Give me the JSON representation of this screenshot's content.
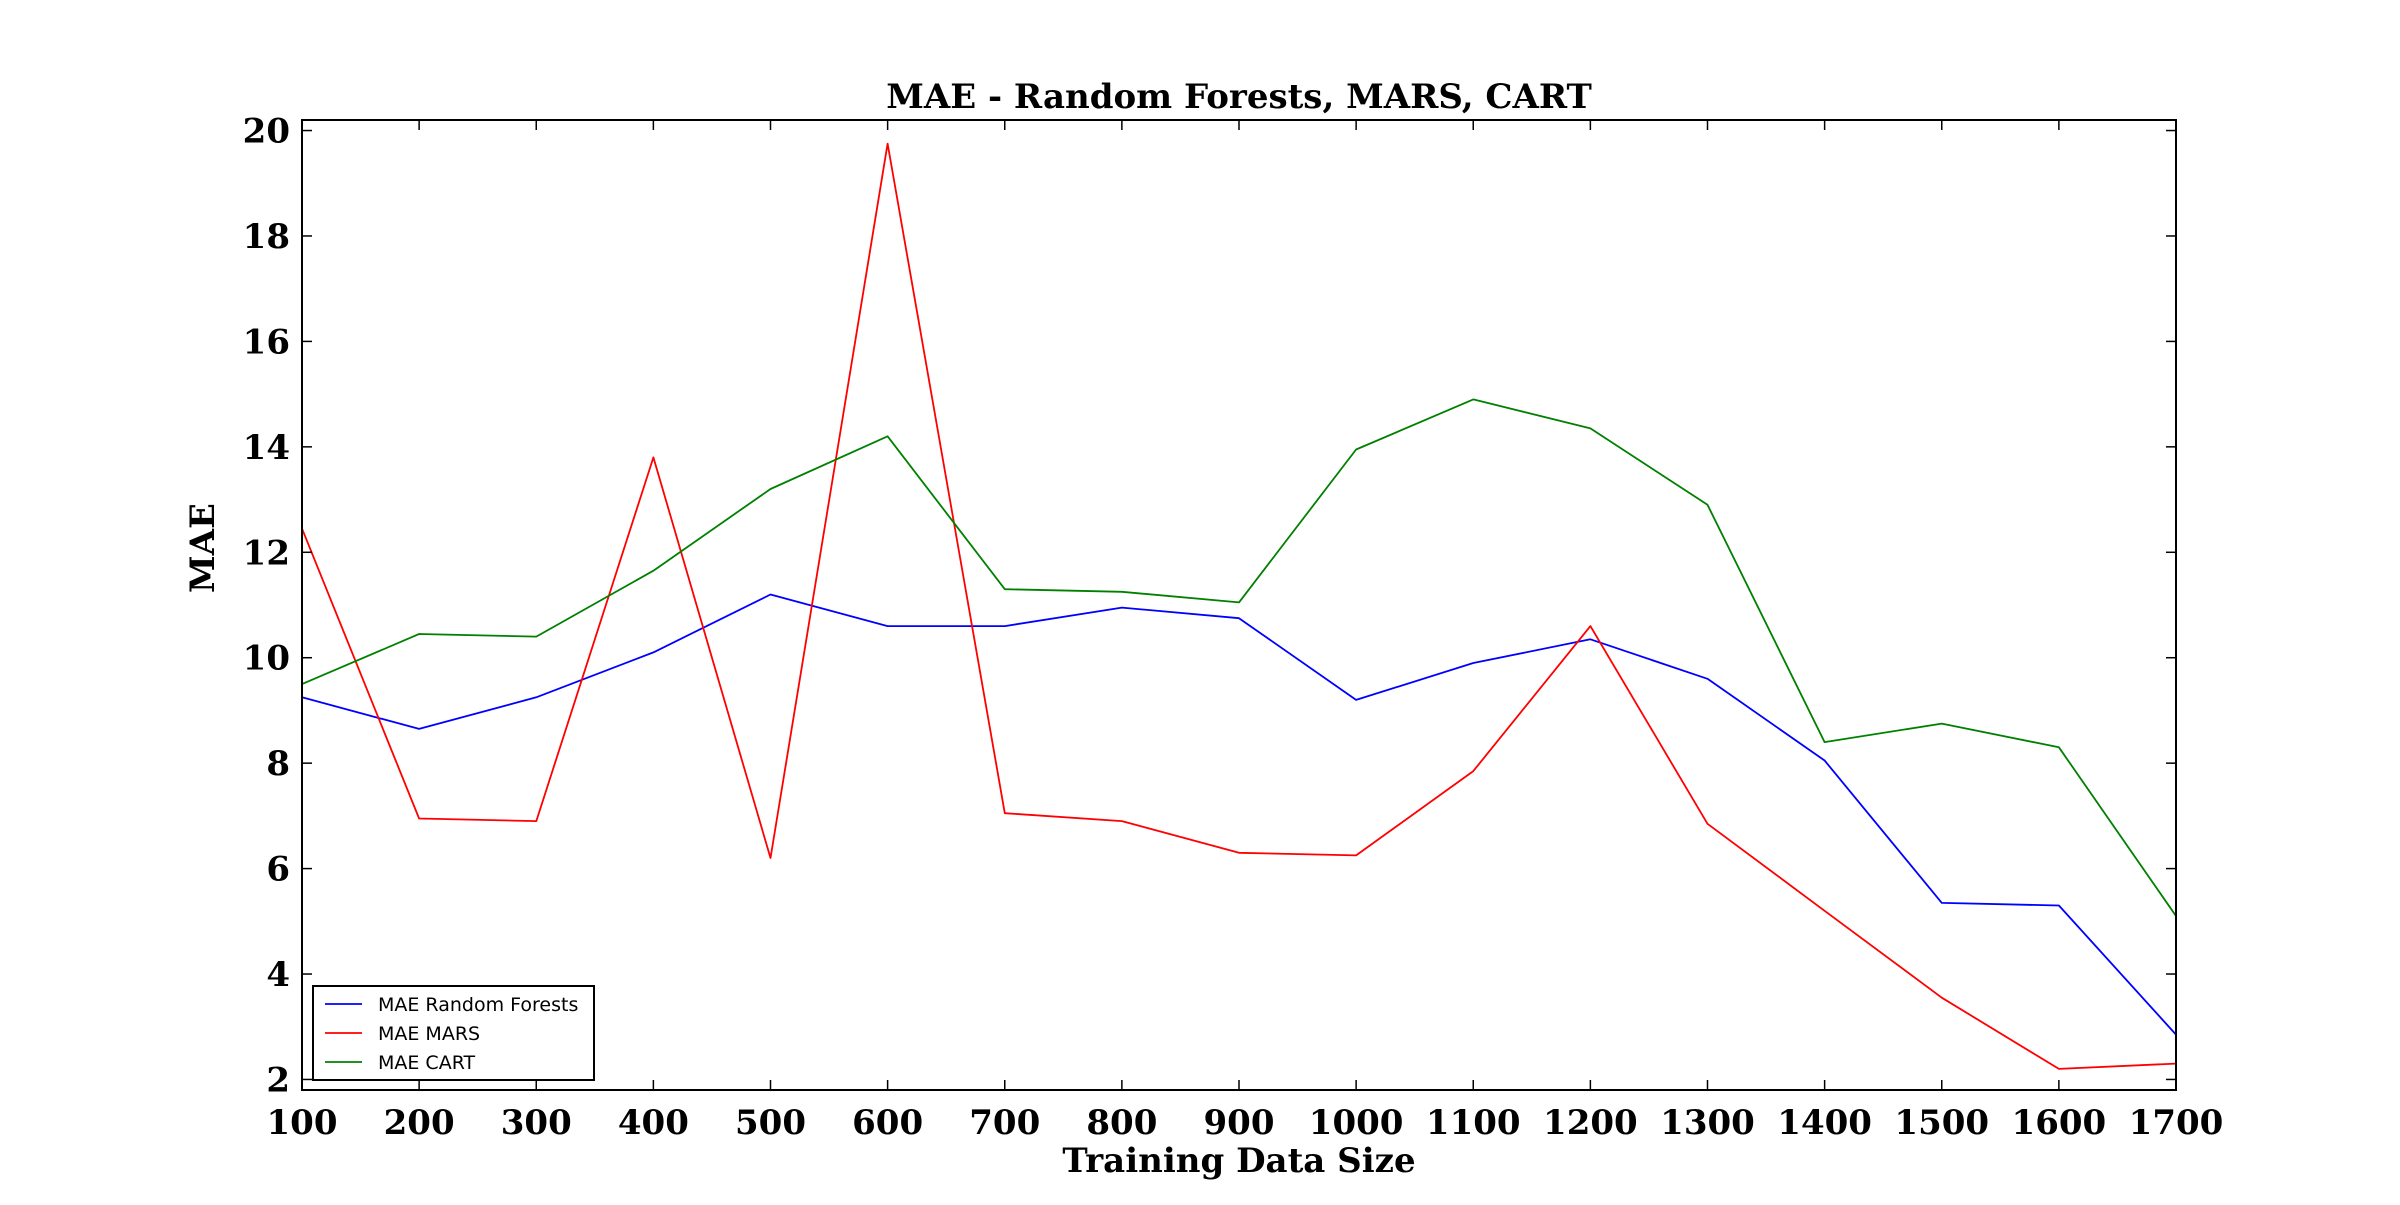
{
  "chart_data": {
    "type": "line",
    "title": "MAE - Random Forests, MARS, CART",
    "xlabel": "Training Data Size",
    "ylabel": "MAE",
    "x": [
      100,
      200,
      300,
      400,
      500,
      600,
      700,
      800,
      900,
      1000,
      1100,
      1200,
      1300,
      1400,
      1500,
      1600,
      1700
    ],
    "xlim": [
      100,
      1700
    ],
    "ylim": [
      1.8,
      20.2
    ],
    "xticks": [
      100,
      200,
      300,
      400,
      500,
      600,
      700,
      800,
      900,
      1000,
      1100,
      1200,
      1300,
      1400,
      1500,
      1600,
      1700
    ],
    "yticks": [
      2,
      4,
      6,
      8,
      10,
      12,
      14,
      16,
      18,
      20
    ],
    "grid": false,
    "legend_position": "lower-left",
    "series": [
      {
        "name": "MAE Random Forests",
        "color": "#0000ff",
        "values": [
          9.25,
          8.65,
          9.25,
          10.1,
          11.2,
          10.6,
          10.6,
          10.95,
          10.75,
          9.2,
          9.9,
          10.35,
          9.6,
          8.05,
          5.35,
          5.3,
          2.85
        ]
      },
      {
        "name": "MAE MARS",
        "color": "#ff0000",
        "values": [
          12.45,
          6.95,
          6.9,
          13.8,
          6.2,
          19.75,
          7.05,
          6.9,
          6.3,
          6.25,
          7.85,
          10.6,
          6.85,
          5.2,
          3.55,
          2.2,
          2.3
        ]
      },
      {
        "name": "MAE CART",
        "color": "#008000",
        "values": [
          9.5,
          10.45,
          10.4,
          11.65,
          13.2,
          14.2,
          11.3,
          11.25,
          11.05,
          13.95,
          14.9,
          14.35,
          12.9,
          8.4,
          8.75,
          8.3,
          5.1
        ]
      }
    ]
  }
}
